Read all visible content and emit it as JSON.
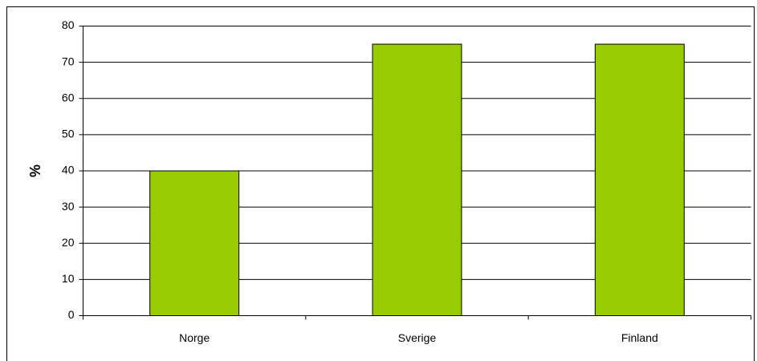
{
  "chart_data": {
    "type": "bar",
    "y_label": "%",
    "categories": [
      "Norge",
      "Sverige",
      "Finland"
    ],
    "values": [
      40,
      75,
      75
    ],
    "color": "#99cc00",
    "ylim": [
      0,
      80
    ],
    "yticks": [
      0,
      10,
      20,
      30,
      40,
      50,
      60,
      70,
      80
    ],
    "grid": true
  }
}
